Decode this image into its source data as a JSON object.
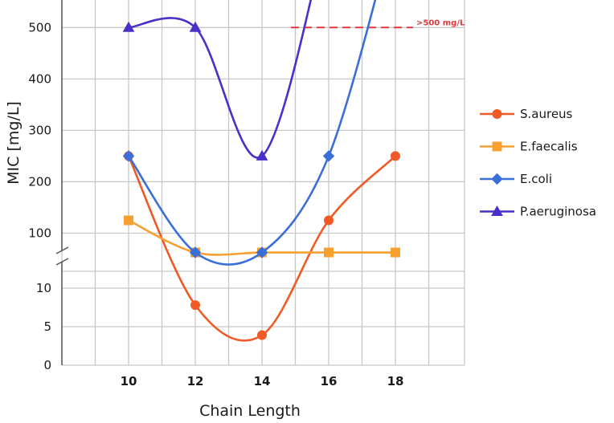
{
  "chart_data": {
    "type": "line",
    "title": "",
    "xlabel": "Chain Length",
    "ylabel": "MIC [mg/L]",
    "x": [
      10,
      12,
      14,
      16,
      18
    ],
    "x_ticks": [
      "10",
      "12",
      "14",
      "16",
      "18"
    ],
    "y_axis": {
      "broken": true,
      "lower_ticks": [
        "0",
        "5",
        "10"
      ],
      "upper_ticks": [
        "100",
        "200",
        "300",
        "400",
        "500"
      ]
    },
    "grid": true,
    "legend_position": "right",
    "series": [
      {
        "name": "S.aureus",
        "color": "#ef5a27",
        "marker": "circle",
        "values": [
          250,
          7.8,
          3.9,
          125,
          250
        ]
      },
      {
        "name": "E.faecalis",
        "color": "#f7a030",
        "marker": "square",
        "values": [
          125,
          62.5,
          62.5,
          62.5,
          62.5
        ]
      },
      {
        "name": "E.coli",
        "color": "#3a6fd8",
        "marker": "diamond",
        "values": [
          250,
          62.5,
          62.5,
          250,
          ">500"
        ]
      },
      {
        "name": "P.aeruginosa",
        "color": "#4b2fc9",
        "marker": "triangle",
        "values": [
          500,
          500,
          250,
          ">500",
          ">500"
        ]
      }
    ],
    "reference_line": {
      "value": 500,
      "label": ">500 mg/L",
      "color": "#e0383a"
    }
  }
}
